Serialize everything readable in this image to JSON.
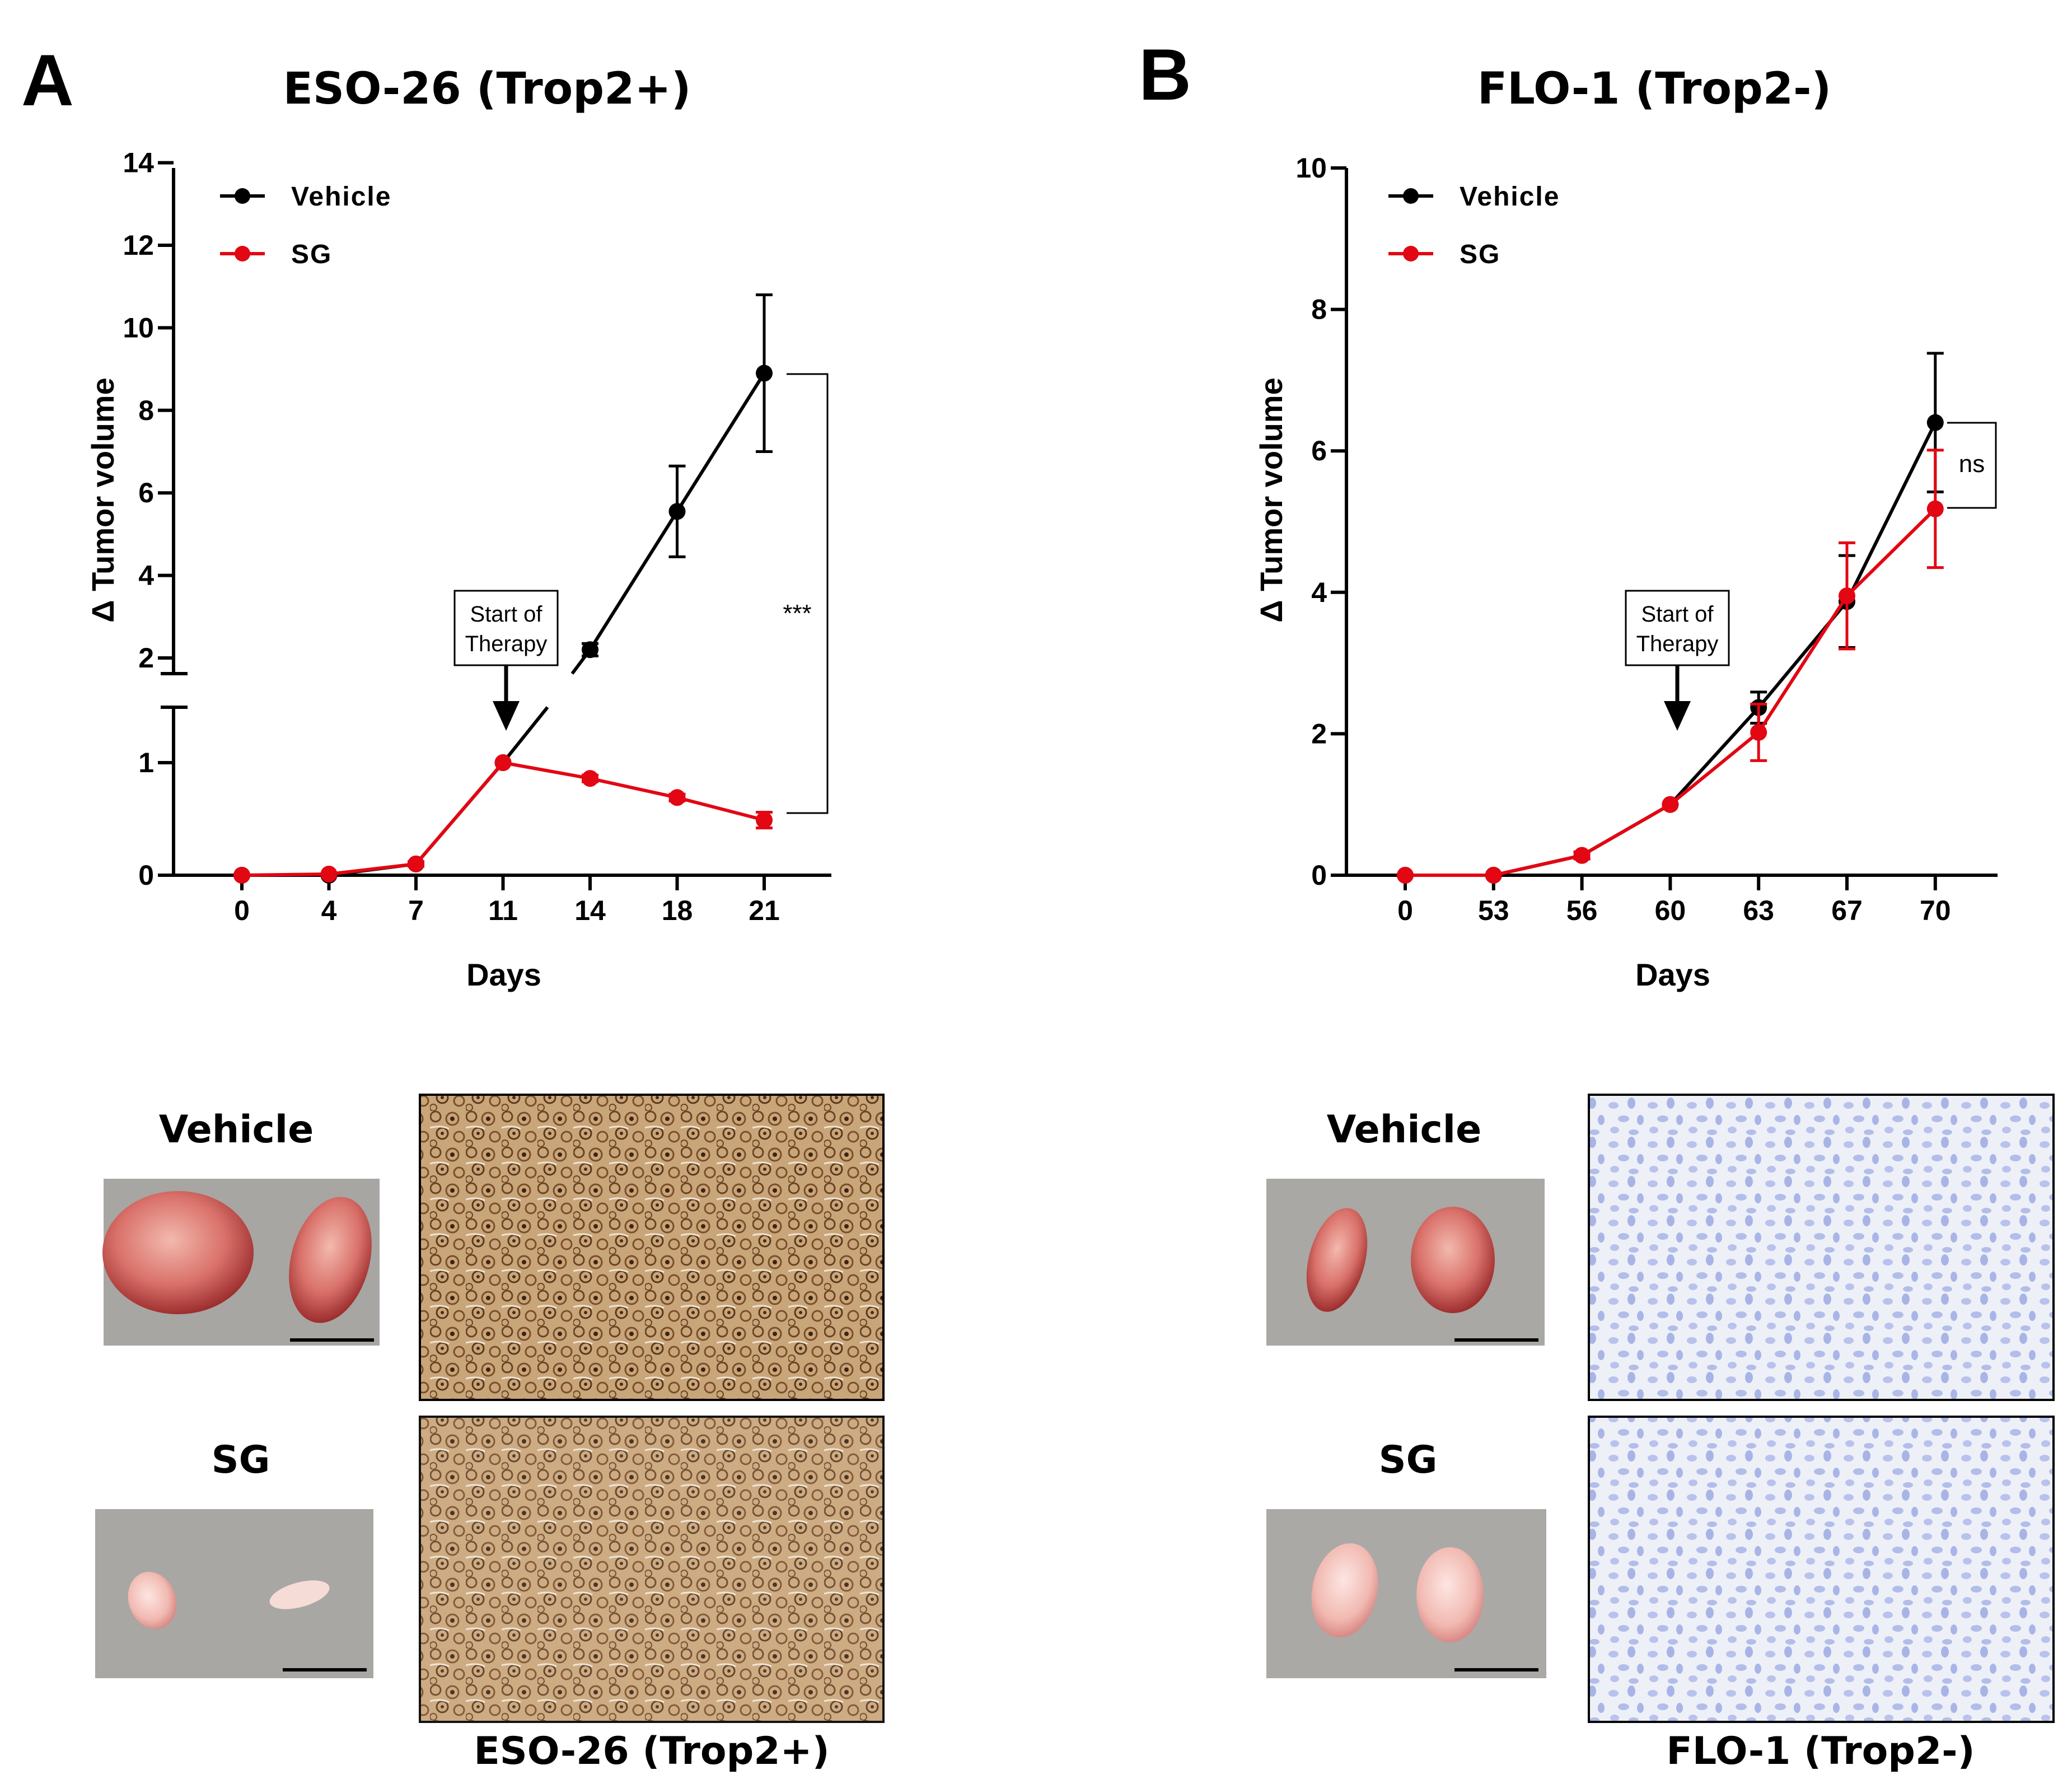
{
  "figure": {
    "panel_a_letter": "A",
    "panel_b_letter": "B",
    "photo_labels": {
      "a_vehicle": "Vehicle",
      "a_sg": "SG",
      "b_vehicle": "Vehicle",
      "b_sg": "SG"
    },
    "captions": {
      "a": "ESO-26 (Trop2+)",
      "b": "FLO-1 (Trop2-)"
    }
  },
  "chart_data": [
    {
      "type": "line",
      "title": "ESO-26 (Trop2+)",
      "xlabel": "Days",
      "ylabel": "Δ Tumor volume",
      "categories": [
        "0",
        "4",
        "7",
        "11",
        "14",
        "18",
        "21"
      ],
      "y_axis_broken": true,
      "ylim_lower": [
        0,
        1.5
      ],
      "ylim_upper": [
        1.7,
        14
      ],
      "yticks_lower": [
        "0",
        "1"
      ],
      "yticks_upper": [
        "2",
        "4",
        "6",
        "8",
        "10",
        "12",
        "14"
      ],
      "series": [
        {
          "name": "Vehicle",
          "color": "#000000",
          "values": [
            0,
            0,
            0.1,
            1,
            2.2,
            5.55,
            8.9
          ],
          "errors": [
            0,
            0,
            0.02,
            0,
            0.15,
            1.1,
            1.9
          ]
        },
        {
          "name": "SG",
          "color": "#e30613",
          "values": [
            0,
            0.01,
            0.1,
            1,
            0.86,
            0.69,
            0.49
          ],
          "errors": [
            0,
            0,
            0.02,
            0,
            0.03,
            0.03,
            0.07
          ]
        }
      ],
      "legend": "top-left",
      "annotations": {
        "box_line1": "Start of",
        "box_line2": "Therapy",
        "arrow_at_category": "11",
        "significance": "***"
      }
    },
    {
      "type": "line",
      "title": "FLO-1 (Trop2-)",
      "xlabel": "Days",
      "ylabel": "Δ Tumor volume",
      "categories": [
        "0",
        "53",
        "56",
        "60",
        "63",
        "67",
        "70"
      ],
      "ylim": [
        0,
        10
      ],
      "yticks": [
        "0",
        "2",
        "4",
        "6",
        "8",
        "10"
      ],
      "series": [
        {
          "name": "Vehicle",
          "color": "#000000",
          "values": [
            0,
            0,
            0.28,
            1,
            2.37,
            3.87,
            6.4
          ],
          "errors": [
            0,
            0,
            0.05,
            0,
            0.22,
            0.65,
            0.98
          ]
        },
        {
          "name": "SG",
          "color": "#e30613",
          "values": [
            0,
            0,
            0.28,
            1,
            2.02,
            3.95,
            5.18
          ],
          "errors": [
            0,
            0,
            0.05,
            0,
            0.4,
            0.75,
            0.83
          ]
        }
      ],
      "legend": "top-left",
      "annotations": {
        "box_line1": "Start of",
        "box_line2": "Therapy",
        "arrow_at_category": "60",
        "significance": "ns"
      }
    }
  ]
}
